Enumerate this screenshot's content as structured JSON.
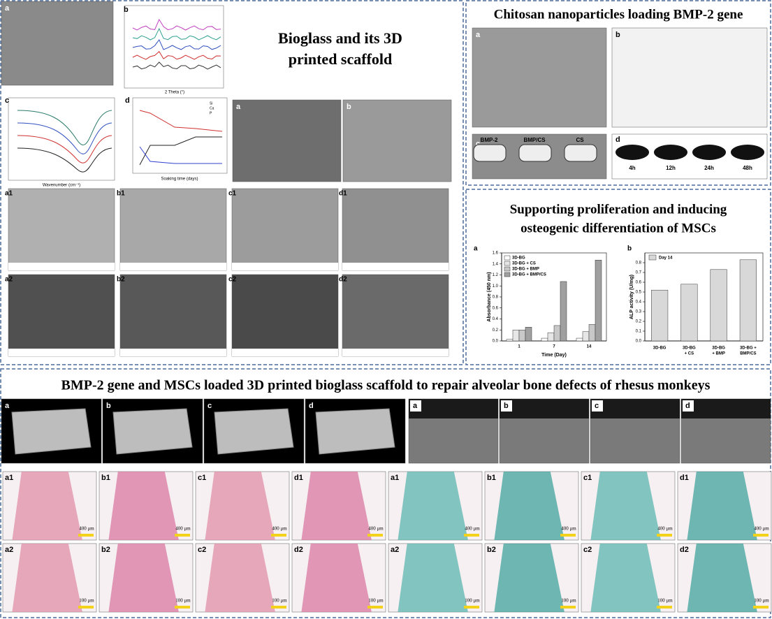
{
  "section1": {
    "title_lines": [
      "Bioglass and its 3D",
      "printed scaffold"
    ],
    "top_labels": [
      "a",
      "b",
      "c",
      "d",
      "a",
      "b"
    ],
    "xrd_xlabel": "2 Theta (°)",
    "ftir_xlabel": "Wavenumber (cm⁻¹)",
    "ion_xlabel": "Soaking time (days)",
    "ion_legend": [
      "Si",
      "Ca",
      "P"
    ],
    "sem_labels": [
      "a1",
      "b1",
      "c1",
      "d1",
      "a2",
      "b2",
      "c2",
      "d2"
    ]
  },
  "section2": {
    "title": "Chitosan nanoparticles loading BMP-2 gene",
    "panel_labels": [
      "a",
      "b",
      "c",
      "d"
    ],
    "gel_labels": [
      "BMP-2",
      "BMP/CS",
      "CS"
    ],
    "blot_labels": [
      "4h",
      "12h",
      "24h",
      "48h"
    ]
  },
  "section3": {
    "title_lines": [
      "Supporting proliferation and inducing",
      "osteogenic differentiation of MSCs"
    ],
    "chart_a": {
      "label": "a",
      "ylabel": "Absorbance (450 nm)",
      "xlabel": "Time (Day)",
      "categories": [
        "1",
        "7",
        "14"
      ],
      "ylim": [
        0,
        1.6
      ],
      "yticks": [
        {
          "value": 0,
          "label": "0.0"
        },
        {
          "value": 0.2,
          "label": "0.2"
        },
        {
          "value": 0.4,
          "label": "0.4"
        },
        {
          "value": 0.6,
          "label": "0.6"
        },
        {
          "value": 0.8,
          "label": "0.8"
        },
        {
          "value": 1.0,
          "label": "1.0"
        },
        {
          "value": 1.2,
          "label": "1.2"
        },
        {
          "value": 1.4,
          "label": "1.4"
        },
        {
          "value": 1.6,
          "label": "1.6"
        }
      ],
      "series": [
        {
          "name": "3D-BG",
          "color": "#ffffff",
          "values": [
            0.03,
            0.05,
            0.05
          ]
        },
        {
          "name": "3D-BG + CS",
          "color": "#e6e6e6",
          "values": [
            0.2,
            0.15,
            0.17
          ]
        },
        {
          "name": "3D-BG + BMP",
          "color": "#c8c8c8",
          "values": [
            0.2,
            0.28,
            0.3
          ]
        },
        {
          "name": "3D-BG + BMP/CS",
          "color": "#a0a0a0",
          "values": [
            0.25,
            1.08,
            1.47
          ]
        }
      ]
    },
    "chart_b": {
      "label": "b",
      "ylabel": "ALP activity (U/mg)",
      "legend": "Day 14",
      "categories": [
        [
          "3D-BG"
        ],
        [
          "3D-BG",
          "+ CS"
        ],
        [
          "3D-BG",
          "+ BMP"
        ],
        [
          "3D-BG +",
          "BMP/CS"
        ]
      ],
      "values": [
        0.52,
        0.58,
        0.73,
        0.83
      ],
      "color": "#d8d8d8",
      "ylim": [
        0,
        0.9
      ],
      "yticks": [
        {
          "value": 0,
          "label": "0.0"
        },
        {
          "value": 0.1,
          "label": "0.1"
        },
        {
          "value": 0.2,
          "label": "0.2"
        },
        {
          "value": 0.3,
          "label": "0.3"
        },
        {
          "value": 0.4,
          "label": "0.4"
        },
        {
          "value": 0.5,
          "label": "0.5"
        },
        {
          "value": 0.6,
          "label": "0.6"
        },
        {
          "value": 0.7,
          "label": "0.7"
        },
        {
          "value": 0.8,
          "label": "0.8"
        }
      ]
    }
  },
  "section4": {
    "title": "BMP-2 gene and MSCs loaded 3D printed bioglass scaffold to repair alveolar bone defects of rhesus monkeys",
    "ct_labels": [
      "a",
      "b",
      "c",
      "d"
    ],
    "xray_labels": [
      "a",
      "b",
      "c",
      "d"
    ],
    "he_labels": [
      "a1",
      "b1",
      "c1",
      "d1",
      "a2",
      "b2",
      "c2",
      "d2"
    ],
    "masson_labels": [
      "a1",
      "b1",
      "c1",
      "d1",
      "a2",
      "b2",
      "c2",
      "d2"
    ],
    "scale_bars": [
      "400 μm",
      "100 μm"
    ]
  }
}
